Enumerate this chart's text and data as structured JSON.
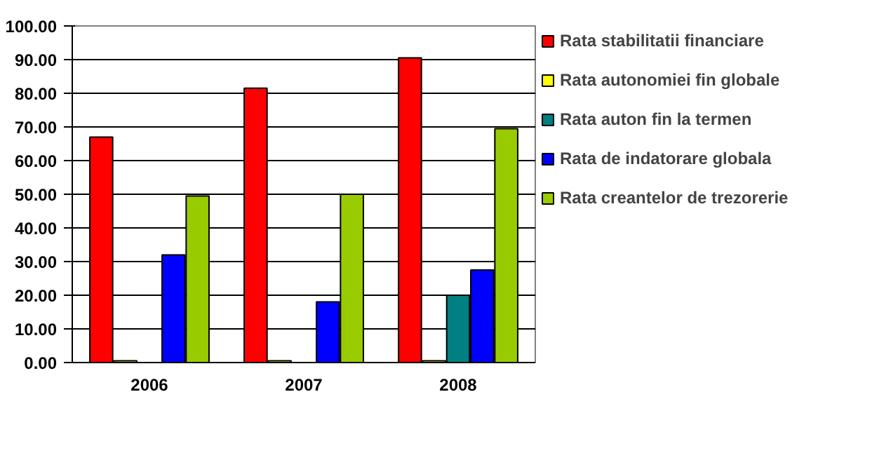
{
  "chart_data": {
    "type": "bar",
    "categories": [
      "2006",
      "2007",
      "2008"
    ],
    "series": [
      {
        "name": "Rata stabilitatii financiare",
        "color": "#ff0000",
        "values": [
          67,
          81.5,
          90.5
        ]
      },
      {
        "name": "Rata autonomiei fin globale",
        "color": "#ffff00",
        "values": [
          0.5,
          0.5,
          0.5
        ]
      },
      {
        "name": "Rata auton fin la termen",
        "color": "#008080",
        "values": [
          null,
          null,
          20
        ]
      },
      {
        "name": "Rata de indatorare globala",
        "color": "#0000ff",
        "values": [
          32,
          18,
          27.5
        ]
      },
      {
        "name": "Rata creantelor de trezorerie",
        "color": "#99cc00",
        "values": [
          49.5,
          50,
          69.5
        ]
      }
    ],
    "ylim": [
      0,
      100
    ],
    "yticks": [
      {
        "value": 0,
        "label": "0.00"
      },
      {
        "value": 10,
        "label": "10.00"
      },
      {
        "value": 20,
        "label": "20.00"
      },
      {
        "value": 30,
        "label": "30.00"
      },
      {
        "value": 40,
        "label": "40.00"
      },
      {
        "value": 50,
        "label": "50.00"
      },
      {
        "value": 60,
        "label": "60.00"
      },
      {
        "value": 70,
        "label": "70.00"
      },
      {
        "value": 80,
        "label": "80.00"
      },
      {
        "value": 90,
        "label": "90.00"
      },
      {
        "value": 100,
        "label": "100.00"
      }
    ],
    "grid": "y",
    "legend": "right"
  }
}
